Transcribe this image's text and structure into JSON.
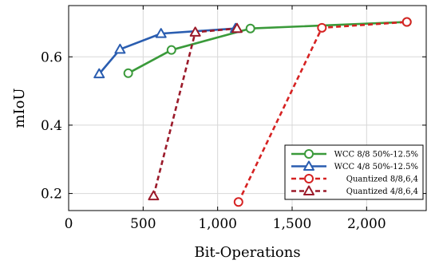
{
  "chart_data": {
    "type": "line",
    "title": "",
    "xlabel": "Bit-Operations",
    "ylabel": "mIoU",
    "xlim": [
      0,
      2400
    ],
    "ylim": [
      0.15,
      0.75
    ],
    "x_ticks": [
      0,
      500,
      1000,
      1500,
      2000
    ],
    "x_tick_labels": [
      "0",
      "500",
      "1,000",
      "1,500",
      "2,000"
    ],
    "y_ticks": [
      0.2,
      0.4,
      0.6
    ],
    "y_tick_labels": [
      "0.2",
      "0.4",
      "0.6"
    ],
    "grid": true,
    "legend_position": "bottom-right",
    "series": [
      {
        "name": "WCC 8/8 50%-12.5%",
        "color": "#3a9a3a",
        "marker": "circle",
        "line_style": "solid",
        "x": [
          400,
          690,
          1220,
          2270
        ],
        "y": [
          0.552,
          0.62,
          0.683,
          0.702
        ]
      },
      {
        "name": "WCC 4/8 50%-12.5%",
        "color": "#2a5db0",
        "marker": "triangle",
        "line_style": "solid",
        "x": [
          205,
          345,
          620,
          1120
        ],
        "y": [
          0.55,
          0.622,
          0.668,
          0.683
        ]
      },
      {
        "name": "Quantized 8/8,6,4",
        "color": "#d62222",
        "marker": "circle",
        "line_style": "dashed",
        "x": [
          1140,
          1700,
          2270
        ],
        "y": [
          0.175,
          0.685,
          0.702
        ]
      },
      {
        "name": "Quantized 4/8,6,4",
        "color": "#9b1a2a",
        "marker": "triangle",
        "line_style": "dashed",
        "x": [
          570,
          850,
          1130
        ],
        "y": [
          0.193,
          0.672,
          0.683
        ]
      }
    ]
  }
}
